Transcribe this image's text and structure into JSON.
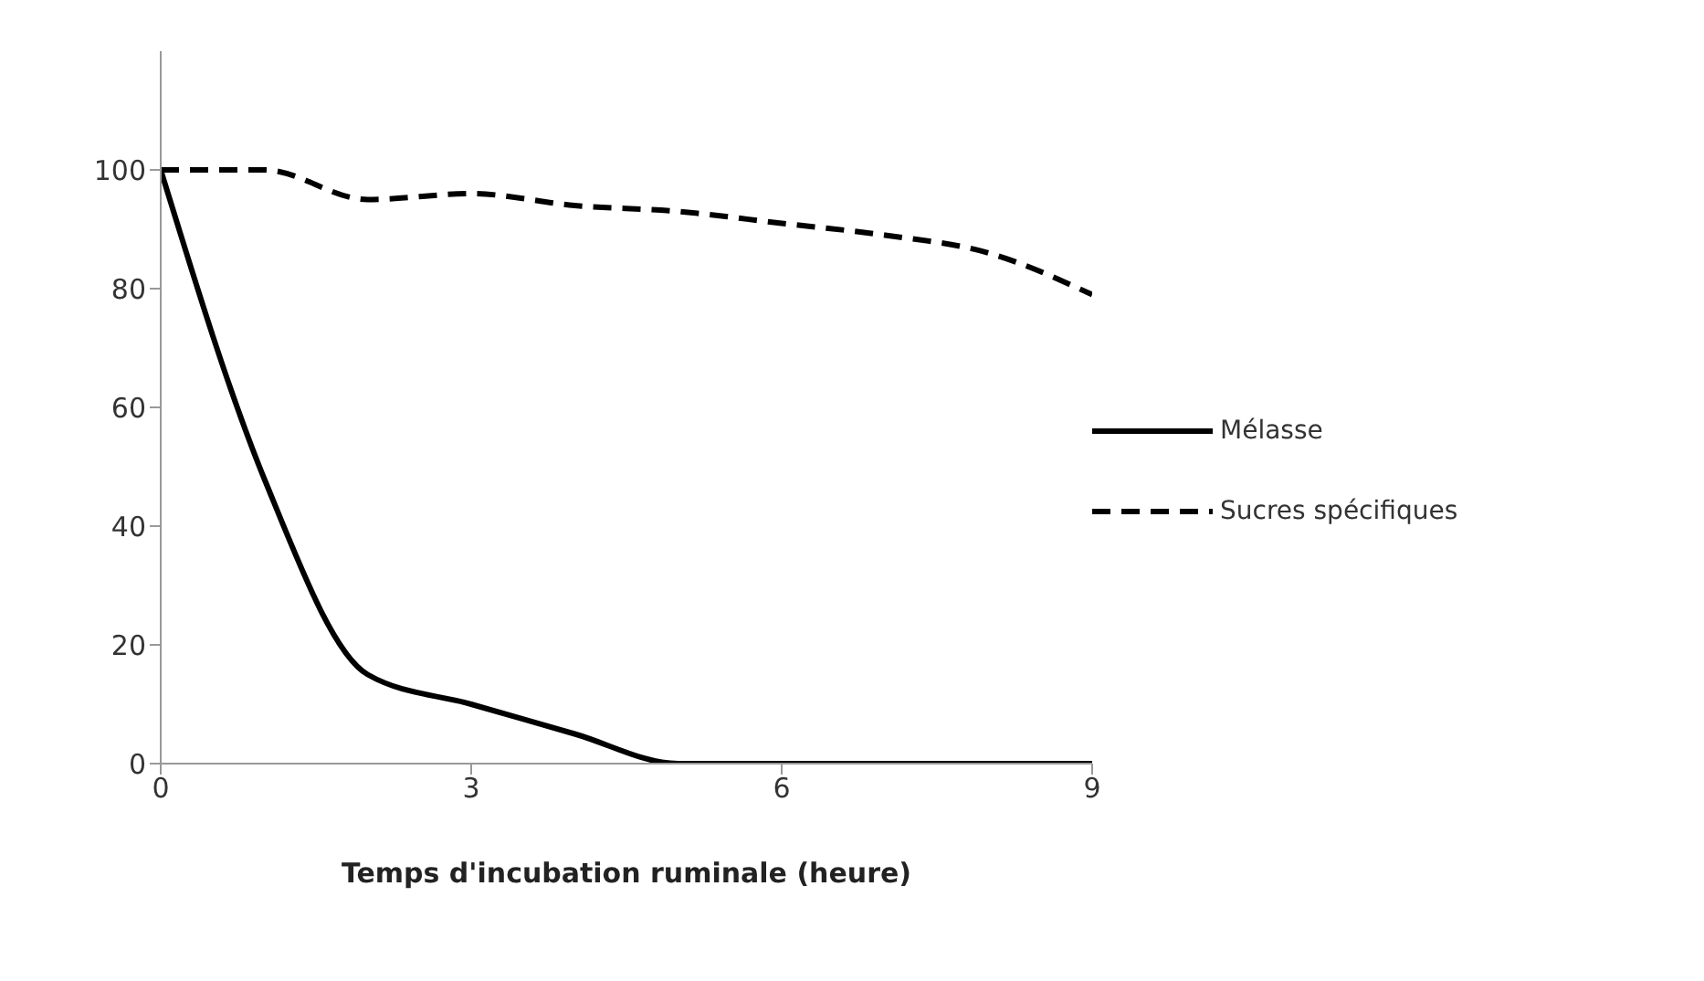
{
  "chart_data": {
    "type": "line",
    "xlabel": "Temps d'incubation ruminale (heure)",
    "x": [
      0,
      1,
      2,
      3,
      4,
      5,
      6,
      7,
      8,
      9
    ],
    "series": [
      {
        "name": "Mélasse",
        "color": "#000000",
        "line_style": "solid",
        "values": [
          100,
          48,
          15,
          10,
          5,
          0,
          0,
          0,
          0,
          0
        ]
      },
      {
        "name": "Sucres spécifiques",
        "color": "#000000",
        "line_style": "dashed",
        "values": [
          100,
          100,
          95,
          96,
          94,
          93,
          91,
          89,
          86,
          79
        ]
      }
    ],
    "xlim": [
      0,
      9
    ],
    "xticks": [
      0,
      3,
      6,
      9
    ],
    "ylim": [
      0,
      120
    ],
    "yticks": [
      0,
      20,
      40,
      60,
      80,
      100
    ],
    "grid": false,
    "legend": "right",
    "marker": "none"
  }
}
